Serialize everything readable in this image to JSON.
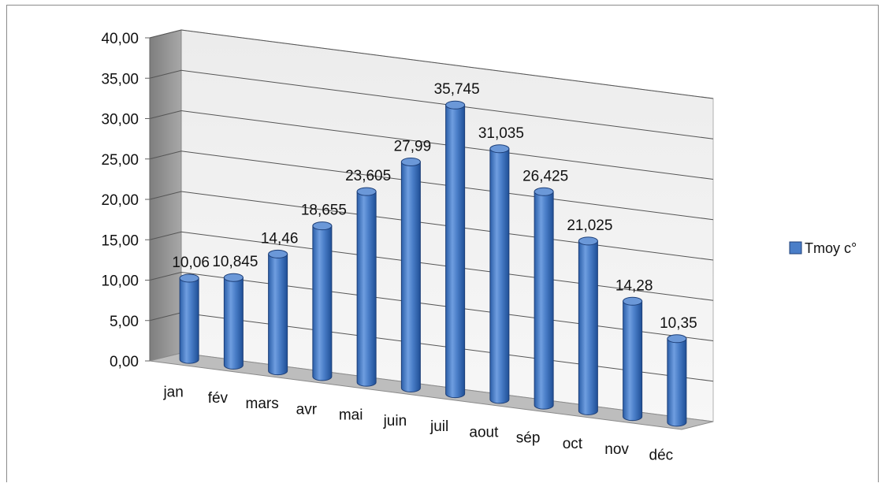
{
  "chart_data": {
    "type": "bar",
    "style": "3d-cylinder",
    "categories": [
      "jan",
      "fév",
      "mars",
      "avr",
      "mai",
      "juin",
      "juil",
      "aout",
      "sép",
      "oct",
      "nov",
      "déc"
    ],
    "series": [
      {
        "name": "Tmoy c°",
        "values": [
          10.06,
          10.845,
          14.46,
          18.655,
          23.605,
          27.99,
          35.745,
          31.035,
          26.425,
          21.025,
          14.28,
          10.35
        ],
        "data_labels": [
          "10,06",
          "10,845",
          "14,46",
          "18,655",
          "23,605",
          "27,99",
          "35,745",
          "31,035",
          "26,425",
          "21,025",
          "14,28",
          "10,35"
        ],
        "color": "#4a7ec8"
      }
    ],
    "y_ticks": [
      "0,00",
      "5,00",
      "10,00",
      "15,00",
      "20,00",
      "25,00",
      "30,00",
      "35,00",
      "40,00"
    ],
    "ylim": [
      0,
      40
    ],
    "grid": true,
    "legend_position": "right",
    "title": "",
    "xlabel": "",
    "ylabel": ""
  }
}
